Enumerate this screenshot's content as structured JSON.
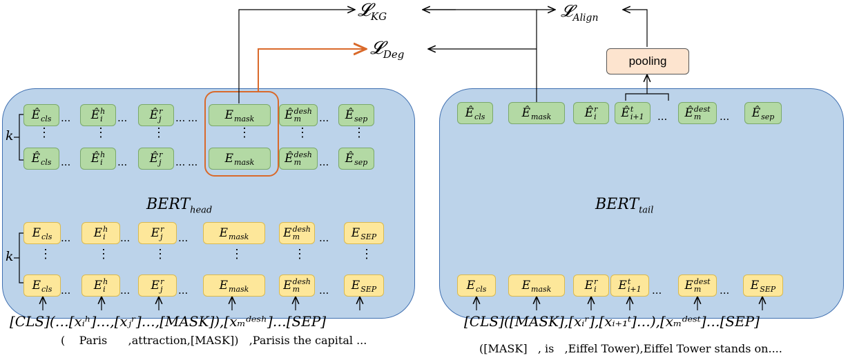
{
  "losses": {
    "kg": "𝓛",
    "kg_sub": "KG",
    "align": "𝓛",
    "align_sub": "Align",
    "deg": "𝓛",
    "deg_sub": "Deg"
  },
  "pooling_label": "pooling",
  "head": {
    "title": "BERT",
    "title_sub": "head",
    "k_label": "k",
    "out_row": [
      {
        "base": "Ê",
        "sup": "",
        "sub": "cls"
      },
      {
        "base": "Ê",
        "sup": "h",
        "sub": "i"
      },
      {
        "base": "Ê",
        "sup": "r",
        "sub": "j"
      },
      {
        "base": "E",
        "sup": "",
        "sub": "mask"
      },
      {
        "base": "Ê",
        "sup": "desh",
        "sub": "m"
      },
      {
        "base": "Ê",
        "sup": "",
        "sub": "sep"
      }
    ],
    "in_row": [
      {
        "base": "E",
        "sup": "",
        "sub": "cls"
      },
      {
        "base": "E",
        "sup": "h",
        "sub": "i"
      },
      {
        "base": "E",
        "sup": "r",
        "sub": "j"
      },
      {
        "base": "E",
        "sup": "",
        "sub": "mask"
      },
      {
        "base": "E",
        "sup": "desh",
        "sub": "m"
      },
      {
        "base": "E",
        "sup": "",
        "sub": "SEP"
      }
    ],
    "seq": "[CLS](…[x",
    "seq_full": "[CLS](…[xᵢʰ]…,[xⱼʳ]…,[MASK]),[xₘᵈᵉˢʰ]…[SEP]",
    "words": "(    Paris      ,attraction,[MASK])   ,Parisis the capital ..."
  },
  "tail": {
    "title": "BERT",
    "title_sub": "tail",
    "out_row": [
      {
        "base": "Ê",
        "sup": "",
        "sub": "cls"
      },
      {
        "base": "Ê",
        "sup": "",
        "sub": "mask"
      },
      {
        "base": "Ê",
        "sup": "r",
        "sub": "i"
      },
      {
        "base": "Ê",
        "sup": "t",
        "sub": "i+1"
      },
      {
        "base": "Ê",
        "sup": "dest",
        "sub": "m"
      },
      {
        "base": "Ê",
        "sup": "",
        "sub": "sep"
      }
    ],
    "in_row": [
      {
        "base": "E",
        "sup": "",
        "sub": "cls"
      },
      {
        "base": "E",
        "sup": "",
        "sub": "mask"
      },
      {
        "base": "E",
        "sup": "r",
        "sub": "i"
      },
      {
        "base": "E",
        "sup": "t",
        "sub": "i+1"
      },
      {
        "base": "E",
        "sup": "dest",
        "sub": "m"
      },
      {
        "base": "E",
        "sup": "",
        "sub": "SEP"
      }
    ],
    "seq_full": "[CLS]([MASK],[xᵢʳ],[xᵢ₊₁ᵗ]…),[xₘᵈᵉˢᵗ]…[SEP]",
    "words": "([MASK]   , is   ,Eiffel Tower),Eiffel Tower stands on...."
  },
  "ellipsis": "...",
  "vdots": "⋮",
  "colors": {
    "panel": "#bcd3ea",
    "green": "#b3d9a4",
    "yellow": "#fde79a",
    "orange": "#d9692a",
    "pool": "#fde4cf"
  }
}
